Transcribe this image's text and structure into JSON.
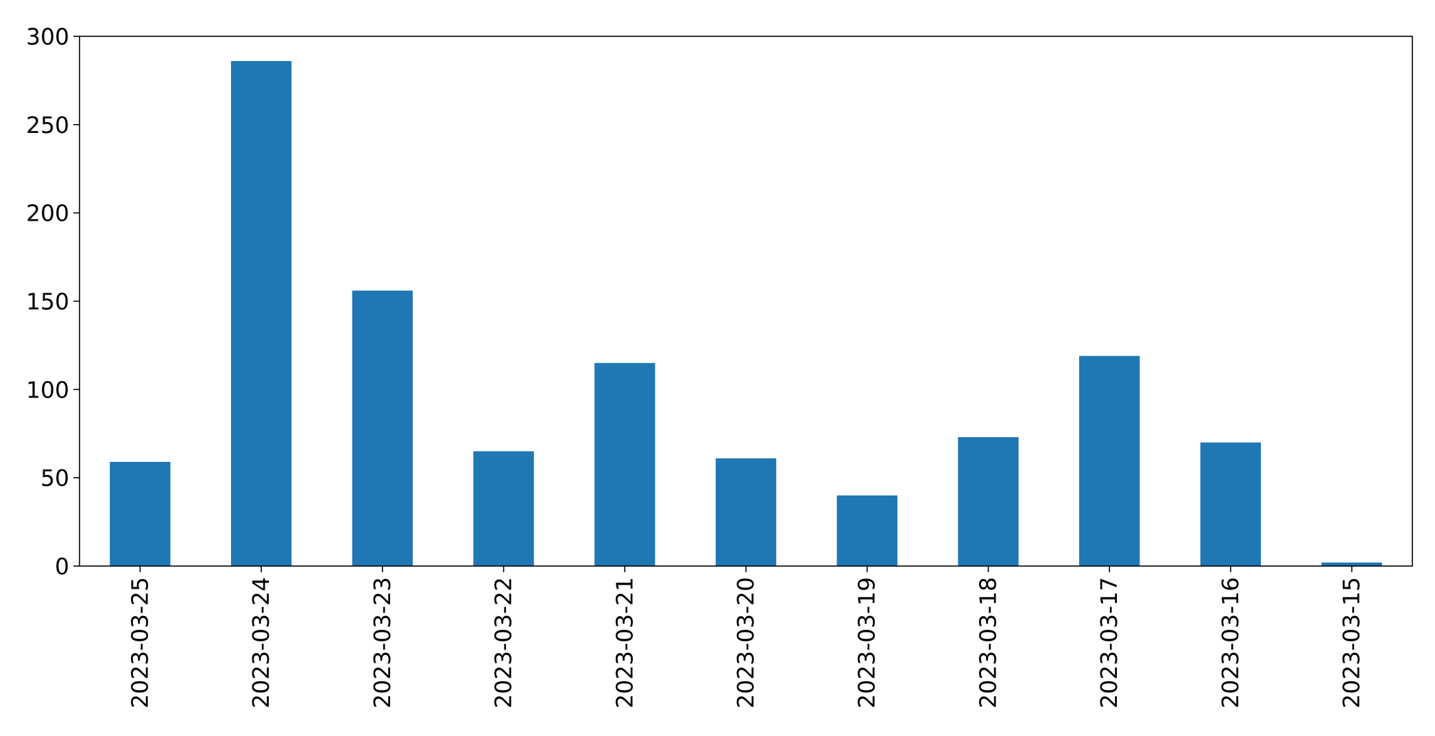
{
  "chart_data": {
    "type": "bar",
    "categories": [
      "2023-03-25",
      "2023-03-24",
      "2023-03-23",
      "2023-03-22",
      "2023-03-21",
      "2023-03-20",
      "2023-03-19",
      "2023-03-18",
      "2023-03-17",
      "2023-03-16",
      "2023-03-15"
    ],
    "values": [
      59,
      286,
      156,
      65,
      115,
      61,
      40,
      73,
      119,
      70,
      2
    ],
    "title": "",
    "xlabel": "",
    "ylabel": "",
    "ylim": [
      0,
      300
    ],
    "yticks": [
      0,
      50,
      100,
      150,
      200,
      250,
      300
    ],
    "grid": false,
    "legend": "none",
    "bar_color": "#1f77b4",
    "axis_color": "#000000"
  }
}
